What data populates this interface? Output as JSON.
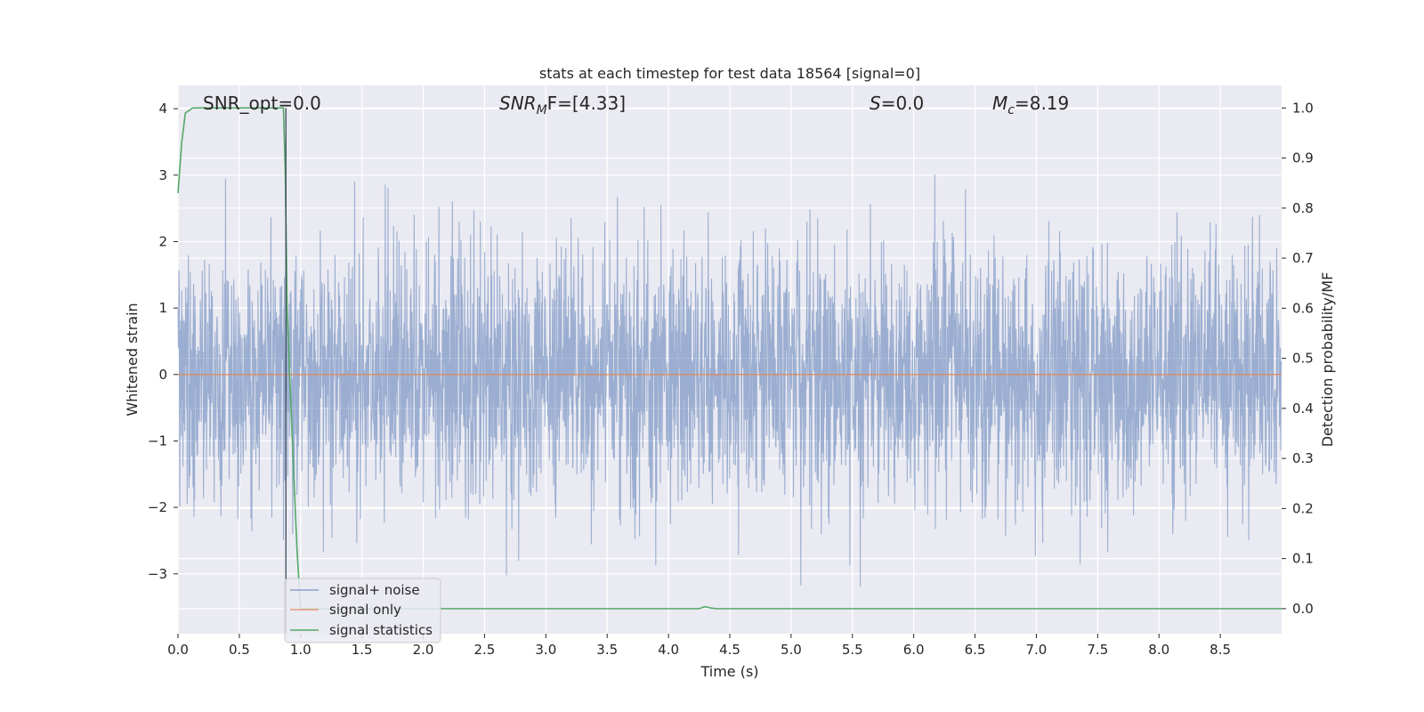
{
  "chart_data": {
    "type": "line",
    "title": "stats at each timestep for test data 18564 [signal=0]",
    "xlabel": "Time (s)",
    "ylabel": "Whitened strain",
    "y2label": "Detection probability/MF",
    "xlim": [
      0.0,
      9.0
    ],
    "ylim": [
      -3.9,
      4.35
    ],
    "y2lim": [
      -0.05,
      1.045
    ],
    "grid": true,
    "legend_position": "lower-left",
    "x_ticks": [
      "0.0",
      "0.5",
      "1.0",
      "1.5",
      "2.0",
      "2.5",
      "3.0",
      "3.5",
      "4.0",
      "4.5",
      "5.0",
      "5.5",
      "6.0",
      "6.5",
      "7.0",
      "7.5",
      "8.0",
      "8.5"
    ],
    "y_ticks": [
      "4",
      "3",
      "2",
      "1",
      "0",
      "−1",
      "−2",
      "−3"
    ],
    "y2_ticks": [
      "1.0",
      "0.9",
      "0.8",
      "0.7",
      "0.6",
      "0.5",
      "0.4",
      "0.3",
      "0.2",
      "0.1",
      "0.0"
    ],
    "annotations": {
      "snr_opt": "SNR_opt=0.0",
      "snr_mf_prefix": "SNR",
      "snr_mf_sub": "M",
      "snr_mf_suffix": "F=[4.33]",
      "s_prefix": "S",
      "s_suffix": "=0.0",
      "mc_prefix": "M",
      "mc_sub": "c",
      "mc_suffix": "=8.19"
    },
    "series": [
      {
        "name": "signal+ noise",
        "color": "#4c72b0",
        "description_values": "dense whitened noise, roughly within [-3.5, 4.0], mean 0",
        "seed": 18564,
        "duration_s": 9.0
      },
      {
        "name": "signal only",
        "color": "#dd8452",
        "x": [
          0.0,
          9.0
        ],
        "y": [
          0.0,
          0.0
        ]
      },
      {
        "name": "signal statistics",
        "color": "#55a868",
        "axis": "right",
        "x": [
          0.0,
          0.03,
          0.06,
          0.12,
          0.2,
          0.5,
          0.86,
          0.875,
          0.89,
          0.93,
          0.97,
          1.0,
          1.2,
          2.0,
          3.0,
          4.0,
          4.25,
          4.3,
          4.35,
          4.4,
          5.0,
          6.0,
          7.0,
          8.0,
          9.0
        ],
        "y": [
          0.83,
          0.93,
          0.99,
          1.0,
          1.0,
          1.0,
          1.0,
          0.87,
          0.6,
          0.35,
          0.12,
          0.0,
          0.0,
          0.0,
          0.0,
          0.0,
          0.0,
          0.004,
          0.001,
          0.0,
          0.0,
          0.0,
          0.0,
          0.0,
          0.0
        ]
      }
    ]
  }
}
